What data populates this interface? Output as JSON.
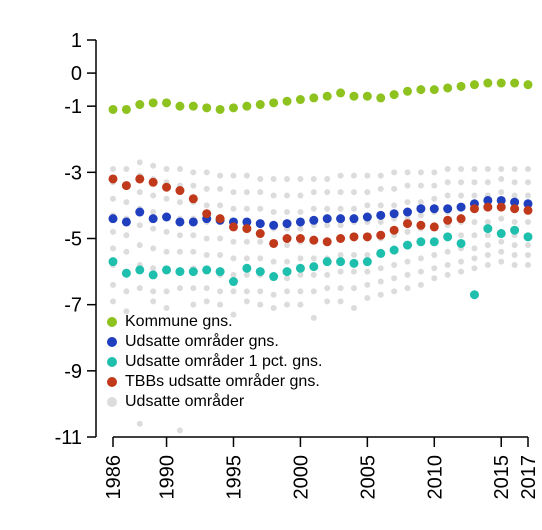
{
  "chart_data": {
    "type": "scatter",
    "x": [
      1986,
      1987,
      1988,
      1989,
      1990,
      1991,
      1992,
      1993,
      1994,
      1995,
      1996,
      1997,
      1998,
      1999,
      2000,
      2001,
      2002,
      2003,
      2004,
      2005,
      2006,
      2007,
      2008,
      2009,
      2010,
      2011,
      2012,
      2013,
      2014,
      2015,
      2016,
      2017
    ],
    "xlim": [
      1986,
      2017
    ],
    "xticks": [
      1986,
      1990,
      1995,
      2000,
      2005,
      2010,
      2015,
      2017
    ],
    "ylim": [
      -11,
      1
    ],
    "yticks": [
      1,
      0,
      -1,
      -3,
      -5,
      -7,
      -9,
      -11
    ],
    "legend": "bottomleft",
    "series": [
      {
        "name": "Kommune gns.",
        "color": "#8dc21f",
        "values": [
          -1.1,
          -1.1,
          -0.95,
          -0.9,
          -0.9,
          -1.0,
          -1.0,
          -1.05,
          -1.1,
          -1.05,
          -1.0,
          -0.95,
          -0.9,
          -0.85,
          -0.8,
          -0.75,
          -0.7,
          -0.6,
          -0.7,
          -0.7,
          -0.75,
          -0.65,
          -0.55,
          -0.5,
          -0.5,
          -0.45,
          -0.4,
          -0.35,
          -0.3,
          -0.3,
          -0.3,
          -0.35
        ]
      },
      {
        "name": "Udsatte områder gns.",
        "color": "#1f3fbf",
        "values": [
          -4.4,
          -4.5,
          -4.2,
          -4.4,
          -4.35,
          -4.5,
          -4.5,
          -4.4,
          -4.45,
          -4.5,
          -4.5,
          -4.55,
          -4.6,
          -4.55,
          -4.5,
          -4.45,
          -4.4,
          -4.4,
          -4.4,
          -4.35,
          -4.3,
          -4.25,
          -4.2,
          -4.1,
          -4.1,
          -4.1,
          -4.05,
          -3.95,
          -3.85,
          -3.85,
          -3.9,
          -3.95
        ]
      },
      {
        "name": "Udsatte områder 1 pct. gns.",
        "color": "#1fbfad",
        "values": [
          -5.7,
          -6.05,
          -5.95,
          -6.1,
          -5.95,
          -6.0,
          -6.0,
          -5.95,
          -6.0,
          -6.3,
          -5.9,
          -6.0,
          -6.15,
          -6.0,
          -5.9,
          -5.85,
          -5.7,
          -5.7,
          -5.75,
          -5.7,
          -5.45,
          -5.35,
          -5.2,
          -5.1,
          -5.1,
          -4.95,
          -5.15,
          -6.7,
          -4.7,
          -4.85,
          -4.75,
          -4.95
        ]
      },
      {
        "name": "TBBs udsatte områder gns.",
        "color": "#c0391b",
        "values": [
          -3.2,
          -3.4,
          -3.2,
          -3.3,
          -3.45,
          -3.55,
          -3.8,
          -4.25,
          -4.4,
          -4.65,
          -4.7,
          -4.85,
          -5.15,
          -5.0,
          -5.0,
          -5.05,
          -5.1,
          -5.0,
          -4.95,
          -4.95,
          -4.9,
          -4.75,
          -4.55,
          -4.6,
          -4.65,
          -4.45,
          -4.4,
          -4.1,
          -4.05,
          -4.05,
          -4.1,
          -4.15
        ]
      },
      {
        "name": "Udsatte områder",
        "color": "#dcdcdc",
        "values": [
          [
            -2.9,
            -3.3,
            -3.8,
            -4.3,
            -4.8,
            -5.3,
            -5.8,
            -6.4,
            -6.9
          ],
          [
            -2.9,
            -3.4,
            -3.9,
            -4.4,
            -4.9,
            -5.4,
            -6.0,
            -6.6,
            -7.2
          ],
          [
            -2.7,
            -3.1,
            -3.6,
            -4.1,
            -4.6,
            -5.2,
            -5.8,
            -6.5,
            -10.6
          ],
          [
            -2.8,
            -3.2,
            -3.7,
            -4.2,
            -4.7,
            -5.3,
            -5.9,
            -6.6,
            -6.9
          ],
          [
            -2.9,
            -3.3,
            -3.8,
            -4.3,
            -4.8,
            -5.4,
            -6.0,
            -6.6,
            -7.1
          ],
          [
            -2.9,
            -3.4,
            -3.9,
            -4.4,
            -4.9,
            -5.4,
            -6.0,
            -6.5,
            -10.8
          ],
          [
            -3.0,
            -3.4,
            -3.9,
            -4.4,
            -4.9,
            -5.4,
            -5.9,
            -6.5,
            -7.0
          ],
          [
            -3.0,
            -3.5,
            -4.0,
            -4.5,
            -5.0,
            -5.5,
            -6.0,
            -6.5,
            -6.9
          ],
          [
            -3.1,
            -3.5,
            -4.0,
            -4.5,
            -5.0,
            -5.5,
            -6.1,
            -6.6,
            -7.0
          ],
          [
            -3.1,
            -3.6,
            -4.1,
            -4.6,
            -5.1,
            -5.6,
            -6.1,
            -6.6,
            -7.3
          ],
          [
            -3.1,
            -3.6,
            -4.1,
            -4.6,
            -5.1,
            -5.6,
            -6.1,
            -6.6,
            -6.9
          ],
          [
            -3.2,
            -3.6,
            -4.1,
            -4.6,
            -5.1,
            -5.6,
            -6.1,
            -6.6,
            -7.0
          ],
          [
            -3.2,
            -3.7,
            -4.2,
            -4.7,
            -5.2,
            -5.7,
            -6.2,
            -6.7,
            -7.1
          ],
          [
            -3.2,
            -3.7,
            -4.2,
            -4.7,
            -5.2,
            -5.7,
            -6.2,
            -6.6,
            -7.0
          ],
          [
            -3.2,
            -3.7,
            -4.2,
            -4.7,
            -5.1,
            -5.6,
            -6.1,
            -6.6,
            -7.0
          ],
          [
            -3.2,
            -3.6,
            -4.1,
            -4.6,
            -5.1,
            -5.6,
            -6.1,
            -6.6,
            -7.4
          ],
          [
            -3.2,
            -3.6,
            -4.1,
            -4.6,
            -5.1,
            -5.6,
            -6.1,
            -6.5,
            -6.9
          ],
          [
            -3.1,
            -3.6,
            -4.1,
            -4.6,
            -5.0,
            -5.5,
            -6.0,
            -6.5,
            -6.9
          ],
          [
            -3.1,
            -3.6,
            -4.1,
            -4.5,
            -5.0,
            -5.5,
            -6.0,
            -6.5,
            -7.1
          ],
          [
            -3.1,
            -3.6,
            -4.0,
            -4.5,
            -5.0,
            -5.5,
            -6.0,
            -6.4,
            -6.8
          ],
          [
            -3.1,
            -3.5,
            -4.0,
            -4.5,
            -5.0,
            -5.4,
            -5.9,
            -6.3,
            -6.7
          ],
          [
            -3.0,
            -3.5,
            -4.0,
            -4.4,
            -4.9,
            -5.3,
            -5.8,
            -6.2,
            -6.6
          ],
          [
            -3.0,
            -3.4,
            -3.9,
            -4.4,
            -4.8,
            -5.2,
            -5.7,
            -6.1,
            -6.5
          ],
          [
            -3.0,
            -3.4,
            -3.9,
            -4.3,
            -4.7,
            -5.1,
            -5.6,
            -6.0,
            -6.4
          ],
          [
            -3.0,
            -3.4,
            -3.8,
            -4.2,
            -4.7,
            -5.1,
            -5.5,
            -5.9,
            -6.2
          ],
          [
            -2.9,
            -3.3,
            -3.7,
            -4.2,
            -4.6,
            -5.0,
            -5.4,
            -5.8,
            -6.1
          ],
          [
            -2.9,
            -3.3,
            -3.7,
            -4.1,
            -4.5,
            -4.9,
            -5.3,
            -5.7,
            -6.0
          ],
          [
            -2.9,
            -3.3,
            -3.7,
            -4.1,
            -4.5,
            -4.9,
            -5.3,
            -5.6,
            -5.9
          ],
          [
            -2.9,
            -3.3,
            -3.7,
            -4.1,
            -4.5,
            -4.9,
            -5.2,
            -5.5,
            -5.8
          ],
          [
            -2.9,
            -3.2,
            -3.6,
            -4.0,
            -4.4,
            -4.8,
            -5.1,
            -5.4,
            -5.7
          ],
          [
            -2.9,
            -3.3,
            -3.7,
            -4.1,
            -4.5,
            -4.9,
            -5.2,
            -5.5,
            -5.8
          ],
          [
            -2.9,
            -3.3,
            -3.7,
            -4.1,
            -4.5,
            -4.9,
            -5.2,
            -5.5,
            -5.8
          ]
        ]
      }
    ]
  }
}
